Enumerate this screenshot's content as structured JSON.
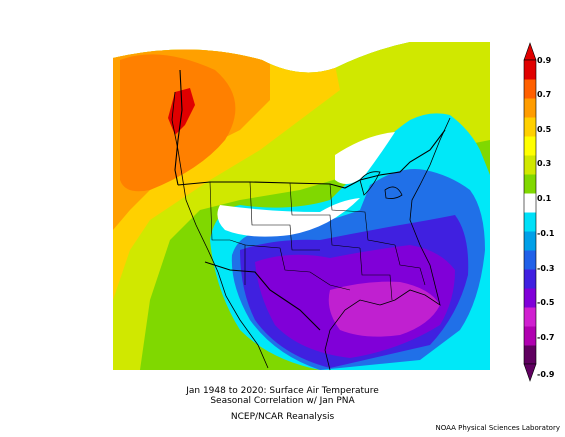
{
  "caption": {
    "line1": "Jan 1948 to 2020: Surface Air Temperature",
    "line2": "Seasonal Correlation w/ Jan PNA",
    "line3": "NCEP/NCAR Reanalysis"
  },
  "credit": "NOAA Physical Sciences Laboratory",
  "colorbar": {
    "labels": [
      "0.9",
      "0.7",
      "0.5",
      "0.3",
      "0.1",
      "-0.1",
      "-0.3",
      "-0.5",
      "-0.7",
      "-0.9"
    ],
    "colors": [
      "#600060",
      "#b000b0",
      "#d020d0",
      "#8000d8",
      "#4020e0",
      "#2060e8",
      "#00a0e8",
      "#00e0f8",
      "#ffffff",
      "#80d800",
      "#d0e800",
      "#ffff00",
      "#ffd000",
      "#ff9c00",
      "#ff6000",
      "#e00000"
    ]
  }
}
